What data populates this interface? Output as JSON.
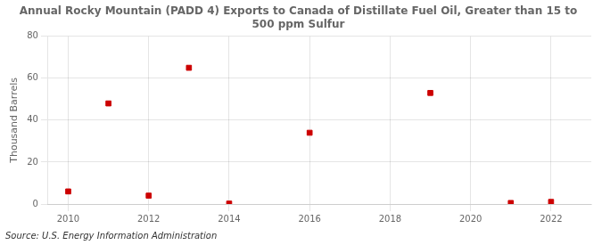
{
  "chart_data": {
    "type": "scatter",
    "title": "Annual Rocky Mountain (PADD 4) Exports to Canada of Distillate Fuel Oil, Greater than 15 to\n500 ppm Sulfur",
    "y_label": "Thousand Barrels",
    "source": "Source: U.S. Energy Information Administration",
    "x": [
      2010,
      2011,
      2012,
      2013,
      2014,
      2015,
      2016,
      2017,
      2018,
      2019,
      2020,
      2021,
      2022
    ],
    "values": [
      6,
      48,
      4,
      65,
      0.2,
      null,
      34,
      null,
      null,
      53,
      null,
      0.5,
      1
    ],
    "color": "#cc0000",
    "marker": "square",
    "xlim": [
      2009.5,
      2023.0
    ],
    "ylim": [
      0,
      80
    ],
    "xticks": [
      2010,
      2012,
      2014,
      2016,
      2018,
      2020,
      2022
    ],
    "yticks": [
      0,
      20,
      40,
      60,
      80
    ],
    "grid": true
  }
}
